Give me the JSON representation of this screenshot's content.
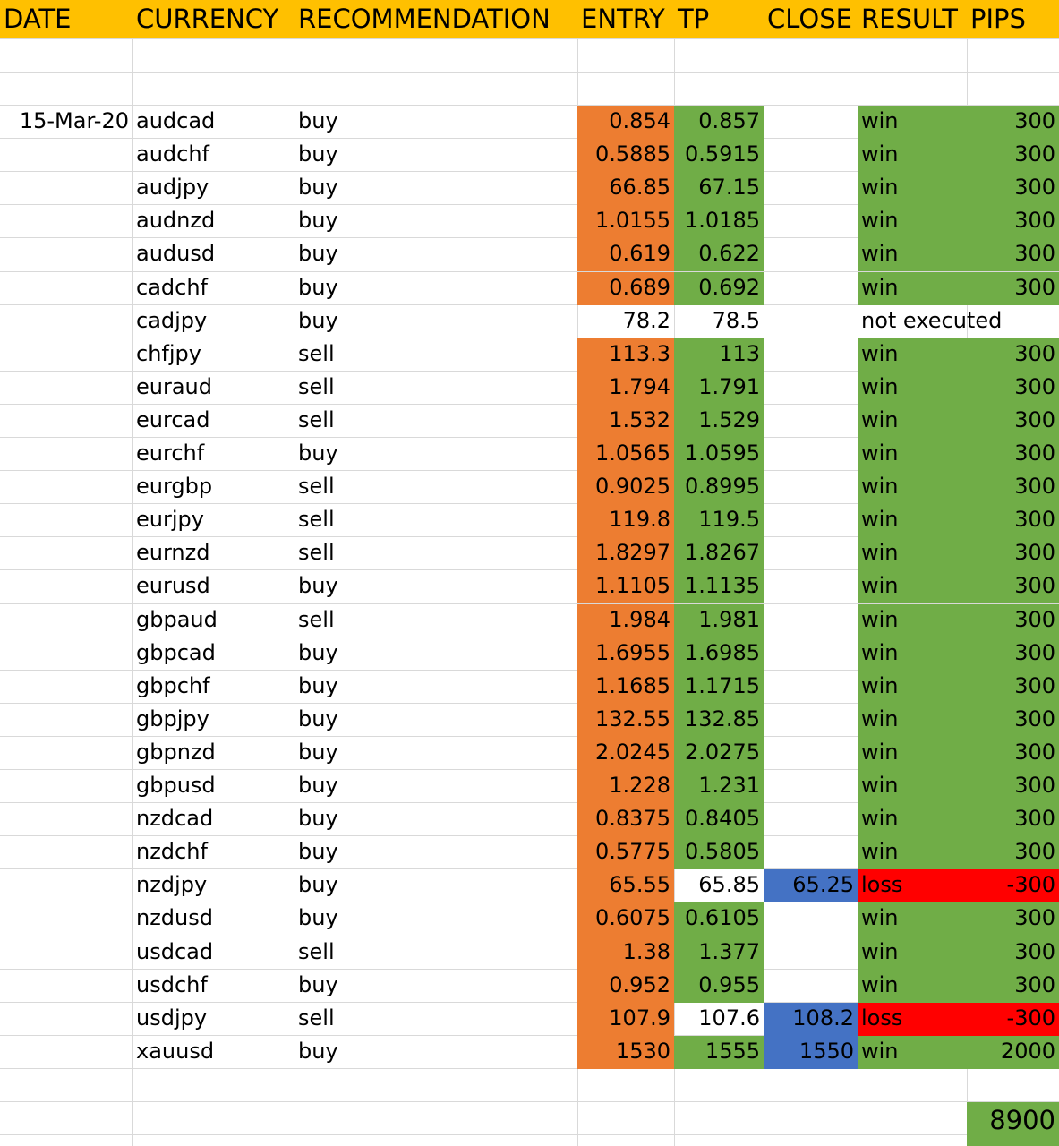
{
  "headers": [
    "DATE",
    "CURRENCY",
    "RECOMMENDATION",
    "ENTRY",
    "TP",
    "CLOSE",
    "RESULT",
    "PIPS"
  ],
  "date": "15-Mar-20",
  "rows": [
    {
      "currency": "audcad",
      "recommendation": "buy",
      "entry": "0.854",
      "tp": "0.857",
      "close": "",
      "result": "win",
      "pips": "300"
    },
    {
      "currency": "audchf",
      "recommendation": "buy",
      "entry": "0.5885",
      "tp": "0.5915",
      "close": "",
      "result": "win",
      "pips": "300"
    },
    {
      "currency": "audjpy",
      "recommendation": "buy",
      "entry": "66.85",
      "tp": "67.15",
      "close": "",
      "result": "win",
      "pips": "300"
    },
    {
      "currency": "audnzd",
      "recommendation": "buy",
      "entry": "1.0155",
      "tp": "1.0185",
      "close": "",
      "result": "win",
      "pips": "300"
    },
    {
      "currency": "audusd",
      "recommendation": "buy",
      "entry": "0.619",
      "tp": "0.622",
      "close": "",
      "result": "win",
      "pips": "300"
    },
    {
      "currency": "cadchf",
      "recommendation": "buy",
      "entry": "0.689",
      "tp": "0.692",
      "close": "",
      "result": "win",
      "pips": "300"
    },
    {
      "currency": "cadjpy",
      "recommendation": "buy",
      "entry": "78.2",
      "tp": "78.5",
      "close": "",
      "result": "not executed",
      "pips": ""
    },
    {
      "currency": "chfjpy",
      "recommendation": "sell",
      "entry": "113.3",
      "tp": "113",
      "close": "",
      "result": "win",
      "pips": "300"
    },
    {
      "currency": "euraud",
      "recommendation": "sell",
      "entry": "1.794",
      "tp": "1.791",
      "close": "",
      "result": "win",
      "pips": "300"
    },
    {
      "currency": "eurcad",
      "recommendation": "sell",
      "entry": "1.532",
      "tp": "1.529",
      "close": "",
      "result": "win",
      "pips": "300"
    },
    {
      "currency": "eurchf",
      "recommendation": "buy",
      "entry": "1.0565",
      "tp": "1.0595",
      "close": "",
      "result": "win",
      "pips": "300"
    },
    {
      "currency": "eurgbp",
      "recommendation": "sell",
      "entry": "0.9025",
      "tp": "0.8995",
      "close": "",
      "result": "win",
      "pips": "300"
    },
    {
      "currency": "eurjpy",
      "recommendation": "sell",
      "entry": "119.8",
      "tp": "119.5",
      "close": "",
      "result": "win",
      "pips": "300"
    },
    {
      "currency": "eurnzd",
      "recommendation": "sell",
      "entry": "1.8297",
      "tp": "1.8267",
      "close": "",
      "result": "win",
      "pips": "300"
    },
    {
      "currency": "eurusd",
      "recommendation": "buy",
      "entry": "1.1105",
      "tp": "1.1135",
      "close": "",
      "result": "win",
      "pips": "300"
    },
    {
      "currency": "gbpaud",
      "recommendation": "sell",
      "entry": "1.984",
      "tp": "1.981",
      "close": "",
      "result": "win",
      "pips": "300"
    },
    {
      "currency": "gbpcad",
      "recommendation": "buy",
      "entry": "1.6955",
      "tp": "1.6985",
      "close": "",
      "result": "win",
      "pips": "300"
    },
    {
      "currency": "gbpchf",
      "recommendation": "buy",
      "entry": "1.1685",
      "tp": "1.1715",
      "close": "",
      "result": "win",
      "pips": "300"
    },
    {
      "currency": "gbpjpy",
      "recommendation": "buy",
      "entry": "132.55",
      "tp": "132.85",
      "close": "",
      "result": "win",
      "pips": "300"
    },
    {
      "currency": "gbpnzd",
      "recommendation": "buy",
      "entry": "2.0245",
      "tp": "2.0275",
      "close": "",
      "result": "win",
      "pips": "300"
    },
    {
      "currency": "gbpusd",
      "recommendation": "buy",
      "entry": "1.228",
      "tp": "1.231",
      "close": "",
      "result": "win",
      "pips": "300"
    },
    {
      "currency": "nzdcad",
      "recommendation": "buy",
      "entry": "0.8375",
      "tp": "0.8405",
      "close": "",
      "result": "win",
      "pips": "300"
    },
    {
      "currency": "nzdchf",
      "recommendation": "buy",
      "entry": "0.5775",
      "tp": "0.5805",
      "close": "",
      "result": "win",
      "pips": "300"
    },
    {
      "currency": "nzdjpy",
      "recommendation": "buy",
      "entry": "65.55",
      "tp": "65.85",
      "close": "65.25",
      "result": "loss",
      "pips": "-300"
    },
    {
      "currency": "nzdusd",
      "recommendation": "buy",
      "entry": "0.6075",
      "tp": "0.6105",
      "close": "",
      "result": "win",
      "pips": "300"
    },
    {
      "currency": "usdcad",
      "recommendation": "sell",
      "entry": "1.38",
      "tp": "1.377",
      "close": "",
      "result": "win",
      "pips": "300"
    },
    {
      "currency": "usdchf",
      "recommendation": "buy",
      "entry": "0.952",
      "tp": "0.955",
      "close": "",
      "result": "win",
      "pips": "300"
    },
    {
      "currency": "usdjpy",
      "recommendation": "sell",
      "entry": "107.9",
      "tp": "107.6",
      "close": "108.2",
      "result": "loss",
      "pips": "-300"
    },
    {
      "currency": "xauusd",
      "recommendation": "buy",
      "entry": "1530",
      "tp": "1555",
      "close": "1550",
      "result": "win",
      "pips": "2000"
    }
  ],
  "total_pips": "8900",
  "colors": {
    "header": "#ffc000",
    "entry": "#ed7d31",
    "tp_win": "#70ad47",
    "result_win": "#70ad47",
    "result_loss": "#ff0000",
    "close": "#4472c4",
    "gridline": "#d9d9d9"
  }
}
